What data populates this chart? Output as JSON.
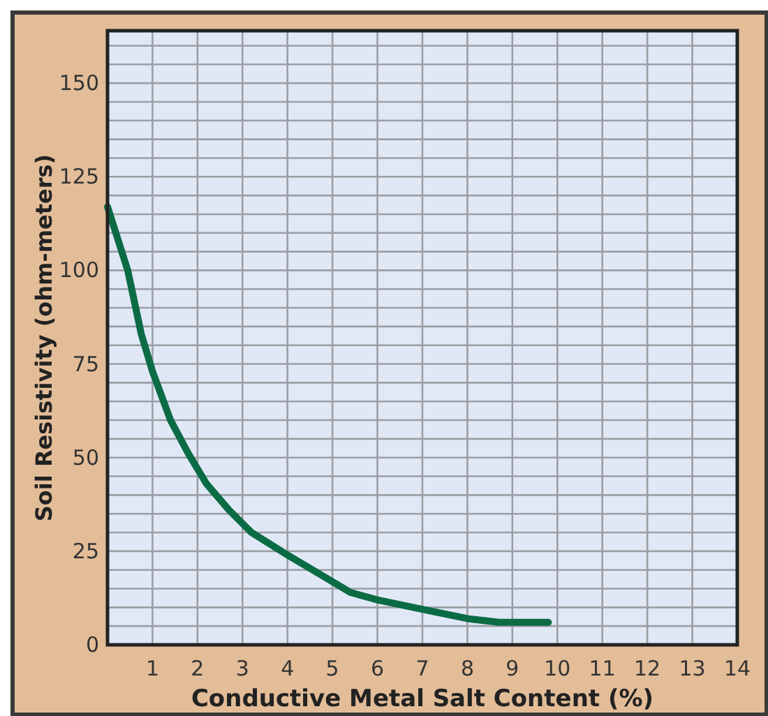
{
  "chart_data": {
    "type": "line",
    "xlabel": "Conductive Metal Salt Content (%)",
    "ylabel": "Soil Resistivity (ohm-meters)",
    "x": [
      0,
      0.45,
      0.75,
      1,
      1.4,
      1.8,
      2.2,
      2.7,
      3.2,
      4,
      4.7,
      5.4,
      6,
      7,
      8,
      8.7,
      9.8
    ],
    "series": [
      {
        "color": "#0b6b45",
        "values": [
          117,
          100,
          83,
          73,
          60,
          51,
          43,
          36,
          30,
          24,
          19,
          14,
          12,
          9.5,
          7,
          6,
          6
        ]
      }
    ],
    "xlim": [
      0,
      14
    ],
    "xticks": [
      1,
      2,
      3,
      4,
      5,
      6,
      7,
      8,
      9,
      10,
      11,
      12,
      13,
      14
    ],
    "ylim": [
      0,
      164
    ],
    "yticks": [
      0,
      {
        "value": 5,
        "label": null
      },
      {
        "value": 10,
        "label": null
      },
      {
        "value": 15,
        "label": null
      },
      {
        "value": 20,
        "label": null
      },
      25,
      {
        "value": 30,
        "label": null
      },
      {
        "value": 35,
        "label": null
      },
      {
        "value": 40,
        "label": null
      },
      {
        "value": 45,
        "label": null
      },
      50,
      {
        "value": 55,
        "label": null
      },
      {
        "value": 60,
        "label": null
      },
      {
        "value": 65,
        "label": null
      },
      {
        "value": 70,
        "label": null
      },
      75,
      {
        "value": 80,
        "label": null
      },
      {
        "value": 85,
        "label": null
      },
      {
        "value": 90,
        "label": null
      },
      {
        "value": 95,
        "label": null
      },
      100,
      {
        "value": 105,
        "label": null
      },
      {
        "value": 110,
        "label": null
      },
      {
        "value": 115,
        "label": null
      },
      {
        "value": 120,
        "label": null
      },
      125,
      {
        "value": 130,
        "label": null
      },
      {
        "value": 135,
        "label": null
      },
      {
        "value": 140,
        "label": null
      },
      {
        "value": 145,
        "label": null
      },
      150,
      {
        "value": 155,
        "label": null
      },
      {
        "value": 160,
        "label": null
      }
    ],
    "grid": true,
    "marker": "none",
    "line_style": "solid"
  }
}
